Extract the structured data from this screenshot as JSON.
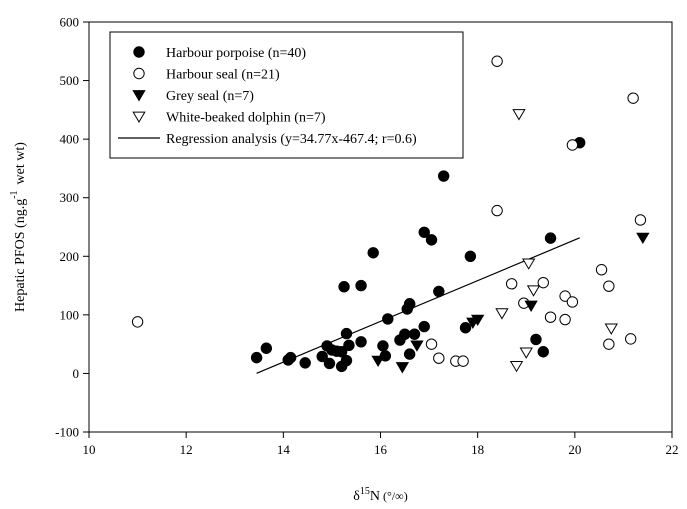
{
  "chart_data": {
    "type": "scatter",
    "xlabel_prefix": "δ",
    "xlabel_sup": "15",
    "xlabel_main": "N",
    "xlabel_unit": "(°/∞)",
    "ylabel_main": "Hepatic PFOS (ng.g",
    "ylabel_sup": "-1",
    "ylabel_end": "wet wt)",
    "xlim": [
      10,
      22
    ],
    "ylim": [
      -100,
      600
    ],
    "xticks": [
      10,
      12,
      14,
      16,
      18,
      20,
      22
    ],
    "yticks": [
      -100,
      0,
      100,
      200,
      300,
      400,
      500,
      600
    ],
    "grid": false,
    "legend_position": "top-left",
    "series": [
      {
        "name": "Harbour porpoise (n=40)",
        "marker": "filled-circle",
        "color": "#000000",
        "points": [
          [
            13.45,
            27
          ],
          [
            13.65,
            43
          ],
          [
            14.1,
            23
          ],
          [
            14.15,
            27
          ],
          [
            14.45,
            18
          ],
          [
            14.8,
            29
          ],
          [
            14.9,
            47
          ],
          [
            14.95,
            17
          ],
          [
            15.0,
            40
          ],
          [
            15.1,
            38
          ],
          [
            15.2,
            37
          ],
          [
            15.25,
            148
          ],
          [
            15.2,
            12
          ],
          [
            15.3,
            22
          ],
          [
            15.3,
            68
          ],
          [
            15.35,
            48
          ],
          [
            15.6,
            150
          ],
          [
            15.6,
            54
          ],
          [
            15.85,
            206
          ],
          [
            16.05,
            47
          ],
          [
            16.1,
            30
          ],
          [
            16.15,
            93
          ],
          [
            16.4,
            57
          ],
          [
            16.5,
            67
          ],
          [
            16.55,
            110
          ],
          [
            16.6,
            119
          ],
          [
            16.6,
            118
          ],
          [
            16.6,
            33
          ],
          [
            16.7,
            67
          ],
          [
            16.9,
            80
          ],
          [
            16.9,
            241
          ],
          [
            17.05,
            228
          ],
          [
            17.2,
            140
          ],
          [
            17.3,
            337
          ],
          [
            17.75,
            78
          ],
          [
            17.85,
            200
          ],
          [
            19.2,
            58
          ],
          [
            19.35,
            37
          ],
          [
            19.5,
            231
          ],
          [
            20.1,
            394
          ]
        ]
      },
      {
        "name": "Harbour seal (n=21)",
        "marker": "open-circle",
        "color": "#000000",
        "points": [
          [
            11.0,
            88
          ],
          [
            17.05,
            50
          ],
          [
            17.2,
            26
          ],
          [
            17.55,
            21
          ],
          [
            17.7,
            21
          ],
          [
            18.4,
            533
          ],
          [
            18.4,
            278
          ],
          [
            18.7,
            153
          ],
          [
            18.95,
            120
          ],
          [
            19.35,
            155
          ],
          [
            19.5,
            96
          ],
          [
            19.8,
            132
          ],
          [
            19.8,
            92
          ],
          [
            19.95,
            390
          ],
          [
            19.95,
            122
          ],
          [
            20.55,
            177
          ],
          [
            20.7,
            149
          ],
          [
            20.7,
            50
          ],
          [
            21.15,
            59
          ],
          [
            21.2,
            470
          ],
          [
            21.35,
            262
          ]
        ]
      },
      {
        "name": "Grey seal (n=7)",
        "marker": "filled-triangle-down",
        "color": "#000000",
        "points": [
          [
            15.95,
            22
          ],
          [
            16.45,
            11
          ],
          [
            16.75,
            48
          ],
          [
            17.9,
            87
          ],
          [
            18.0,
            92
          ],
          [
            19.1,
            116
          ],
          [
            21.4,
            232
          ]
        ]
      },
      {
        "name": "White-beaked dolphin (n=7)",
        "marker": "open-triangle-down",
        "color": "#000000",
        "points": [
          [
            18.5,
            103
          ],
          [
            18.8,
            13
          ],
          [
            18.85,
            443
          ],
          [
            19.05,
            188
          ],
          [
            19.0,
            36
          ],
          [
            19.15,
            142
          ],
          [
            20.75,
            77
          ]
        ]
      }
    ],
    "regression": {
      "name": "Regression analysis (y=34.77x-467.4; r=0.6)",
      "slope": 34.77,
      "intercept": -467.4,
      "x_start": 13.45,
      "x_end": 20.1
    }
  }
}
